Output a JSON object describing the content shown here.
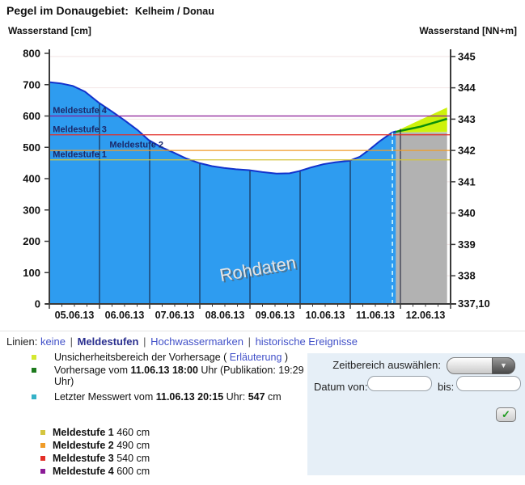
{
  "title": {
    "prefix": "Pegel im Donaugebiet:",
    "station": "Kelheim / Donau"
  },
  "axes_titles": {
    "left": "Wasserstand [cm]",
    "right": "Wasserstand [NN+m]"
  },
  "linien_bar": {
    "label": "Linien:",
    "separator": "|",
    "options": [
      {
        "label": "keine",
        "active": false
      },
      {
        "label": "Meldestufen",
        "active": true
      },
      {
        "label": "Hochwassermarken",
        "active": false
      },
      {
        "label": "historische Ereignisse",
        "active": false
      }
    ]
  },
  "legend": {
    "uncertainty": {
      "color": "#d4e830",
      "text_before": "Unsicherheitsbereich der Vorhersage ( ",
      "link": "Erläuterung",
      "text_after": " )"
    },
    "forecast": {
      "color": "#1d7a1d",
      "text_before": "Vorhersage vom ",
      "bold": "11.06.13 18:00",
      "text_line1_after": " Uhr (Publikation: 19:29",
      "text_line2": "Uhr)"
    },
    "last_value": {
      "color": "#35b2c8",
      "text_before": "Letzter Messwert vom ",
      "bold": "11.06.13 20:15",
      "text_mid": " Uhr: ",
      "bold2": "547",
      "text_after": " cm"
    }
  },
  "controls": {
    "zeitbereich_label": "Zeitbereich auswählen:",
    "datum_von_label": "Datum von:",
    "bis_label": "bis:",
    "von_value": "",
    "bis_value": "",
    "submit_icon": "✓"
  },
  "chart_data": {
    "type": "area",
    "title": "Pegel im Donaugebiet: Kelheim / Donau",
    "watermark": "Rohdaten",
    "ylabel_left": "Wasserstand [cm]",
    "ylabel_right": "Wasserstand [NN+m]",
    "left_axis": {
      "min": 0,
      "max": 800,
      "step": 100
    },
    "right_axis": {
      "ticks": [
        345,
        344,
        343,
        342,
        341,
        340,
        339,
        338
      ],
      "bottom_label": "337,10",
      "gauge_zero_m": 337.1
    },
    "x_axis": {
      "day_labels": [
        "05.06.13",
        "06.06.13",
        "07.06.13",
        "08.06.13",
        "09.06.13",
        "10.06.13",
        "11.06.13",
        "12.06.13"
      ],
      "days": 8,
      "minor_per_day": 4
    },
    "rohdaten_cm": [
      [
        0,
        708
      ],
      [
        0.23,
        704
      ],
      [
        0.47,
        696
      ],
      [
        0.71,
        678
      ],
      [
        0.98,
        643
      ],
      [
        1.27,
        612
      ],
      [
        1.51,
        585
      ],
      [
        1.76,
        555
      ],
      [
        1.98,
        523
      ],
      [
        2.24,
        500
      ],
      [
        2.48,
        483
      ],
      [
        2.72,
        465
      ],
      [
        2.98,
        450
      ],
      [
        3.24,
        440
      ],
      [
        3.48,
        434
      ],
      [
        3.72,
        430
      ],
      [
        3.98,
        427
      ],
      [
        4.25,
        421
      ],
      [
        4.53,
        416
      ],
      [
        4.79,
        417
      ],
      [
        4.98,
        424
      ],
      [
        5.22,
        436
      ],
      [
        5.46,
        446
      ],
      [
        5.7,
        452
      ],
      [
        5.98,
        457
      ],
      [
        6.19,
        470
      ],
      [
        6.4,
        495
      ],
      [
        6.59,
        520
      ],
      [
        6.83,
        547
      ],
      [
        6.91,
        551
      ]
    ],
    "forecast_cm": [
      [
        6.86,
        548
      ],
      [
        7.4,
        566
      ],
      [
        7.93,
        591
      ]
    ],
    "uncertainty_top_cm": [
      [
        6.86,
        548
      ],
      [
        7.93,
        627
      ]
    ],
    "uncertainty_bottom_cm": [
      [
        6.86,
        548
      ],
      [
        7.93,
        549
      ]
    ],
    "forecast_region": {
      "x0": 6.91,
      "x1": 7.93,
      "top_cm": 548
    },
    "last_measurement": {
      "day": 6.84,
      "cm": 547,
      "label": "11.06.13 20:15"
    },
    "alert_levels": [
      {
        "name": "Meldestufe 1",
        "cm": 460,
        "color": "#d4c53e",
        "label_day": 0.07
      },
      {
        "name": "Meldestufe 2",
        "cm": 490,
        "color": "#f09c28",
        "label_day": 1.2
      },
      {
        "name": "Meldestufe 3",
        "cm": 540,
        "color": "#e32e27",
        "label_day": 0.07
      },
      {
        "name": "Meldestufe 4",
        "cm": 600,
        "color": "#8b1b96",
        "label_day": 0.07
      }
    ],
    "colors": {
      "area": "#2e9cf0",
      "area_edge": "#1232cc",
      "forecast_area": "#b2b2b2",
      "uncertainty": "#cdf20c",
      "forecast_line": "#0b8f0b",
      "day_grid": "#141830",
      "meter_grid": "#f2e4e4",
      "axis": "#3a3a3a",
      "last_measurement_line": "#d9feff",
      "alert_label": "#1b2a6b",
      "watermark": "#e4e4e4",
      "watermark_shadow": "#5a5a5a"
    }
  }
}
